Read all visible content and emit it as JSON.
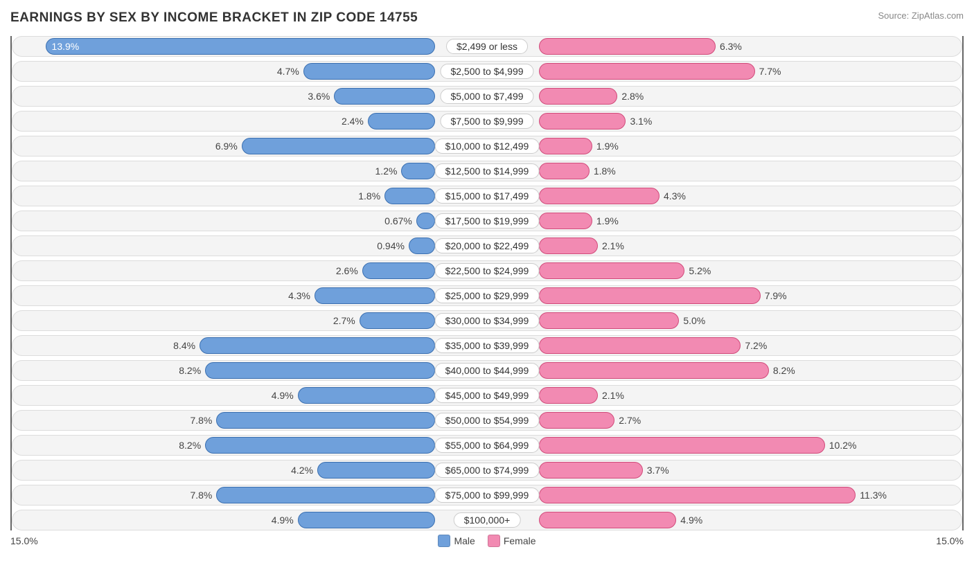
{
  "title": "EARNINGS BY SEX BY INCOME BRACKET IN ZIP CODE 14755",
  "source": "Source: ZipAtlas.com",
  "axis_max": 15.0,
  "axis_label_left": "15.0%",
  "axis_label_right": "15.0%",
  "colors": {
    "male_fill": "#6fa0db",
    "male_border": "#3a6fb0",
    "female_fill": "#f28ab2",
    "female_border": "#d14a7a",
    "row_bg": "#f4f4f4",
    "row_border": "#dcdcdc",
    "axis_border": "#666666",
    "text": "#444444"
  },
  "legend": {
    "male": "Male",
    "female": "Female"
  },
  "rows": [
    {
      "label": "$2,499 or less",
      "male": 13.9,
      "male_label": "13.9%",
      "female": 6.3,
      "female_label": "6.3%"
    },
    {
      "label": "$2,500 to $4,999",
      "male": 4.7,
      "male_label": "4.7%",
      "female": 7.7,
      "female_label": "7.7%"
    },
    {
      "label": "$5,000 to $7,499",
      "male": 3.6,
      "male_label": "3.6%",
      "female": 2.8,
      "female_label": "2.8%"
    },
    {
      "label": "$7,500 to $9,999",
      "male": 2.4,
      "male_label": "2.4%",
      "female": 3.1,
      "female_label": "3.1%"
    },
    {
      "label": "$10,000 to $12,499",
      "male": 6.9,
      "male_label": "6.9%",
      "female": 1.9,
      "female_label": "1.9%"
    },
    {
      "label": "$12,500 to $14,999",
      "male": 1.2,
      "male_label": "1.2%",
      "female": 1.8,
      "female_label": "1.8%"
    },
    {
      "label": "$15,000 to $17,499",
      "male": 1.8,
      "male_label": "1.8%",
      "female": 4.3,
      "female_label": "4.3%"
    },
    {
      "label": "$17,500 to $19,999",
      "male": 0.67,
      "male_label": "0.67%",
      "female": 1.9,
      "female_label": "1.9%"
    },
    {
      "label": "$20,000 to $22,499",
      "male": 0.94,
      "male_label": "0.94%",
      "female": 2.1,
      "female_label": "2.1%"
    },
    {
      "label": "$22,500 to $24,999",
      "male": 2.6,
      "male_label": "2.6%",
      "female": 5.2,
      "female_label": "5.2%"
    },
    {
      "label": "$25,000 to $29,999",
      "male": 4.3,
      "male_label": "4.3%",
      "female": 7.9,
      "female_label": "7.9%"
    },
    {
      "label": "$30,000 to $34,999",
      "male": 2.7,
      "male_label": "2.7%",
      "female": 5.0,
      "female_label": "5.0%"
    },
    {
      "label": "$35,000 to $39,999",
      "male": 8.4,
      "male_label": "8.4%",
      "female": 7.2,
      "female_label": "7.2%"
    },
    {
      "label": "$40,000 to $44,999",
      "male": 8.2,
      "male_label": "8.2%",
      "female": 8.2,
      "female_label": "8.2%"
    },
    {
      "label": "$45,000 to $49,999",
      "male": 4.9,
      "male_label": "4.9%",
      "female": 2.1,
      "female_label": "2.1%"
    },
    {
      "label": "$50,000 to $54,999",
      "male": 7.8,
      "male_label": "7.8%",
      "female": 2.7,
      "female_label": "2.7%"
    },
    {
      "label": "$55,000 to $64,999",
      "male": 8.2,
      "male_label": "8.2%",
      "female": 10.2,
      "female_label": "10.2%"
    },
    {
      "label": "$65,000 to $74,999",
      "male": 4.2,
      "male_label": "4.2%",
      "female": 3.7,
      "female_label": "3.7%"
    },
    {
      "label": "$75,000 to $99,999",
      "male": 7.8,
      "male_label": "7.8%",
      "female": 11.3,
      "female_label": "11.3%"
    },
    {
      "label": "$100,000+",
      "male": 4.9,
      "male_label": "4.9%",
      "female": 4.9,
      "female_label": "4.9%"
    }
  ]
}
